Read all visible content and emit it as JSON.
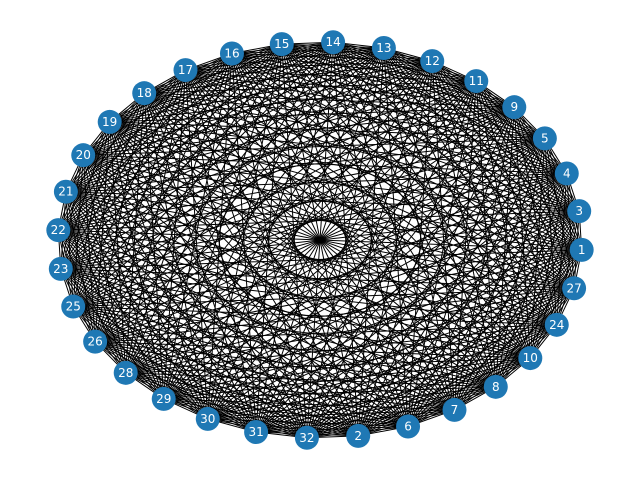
{
  "graph": {
    "type": "complete-graph",
    "layout": "circular",
    "node_color": "#1f78b4",
    "edge_color": "#000000",
    "label_color": "#ffffff",
    "nodes_in_ring_order": [
      "1",
      "3",
      "4",
      "5",
      "9",
      "11",
      "12",
      "13",
      "14",
      "15",
      "16",
      "17",
      "18",
      "19",
      "20",
      "21",
      "22",
      "23",
      "25",
      "26",
      "28",
      "29",
      "30",
      "31",
      "32",
      "2",
      "6",
      "7",
      "8",
      "10",
      "24",
      "27"
    ]
  }
}
